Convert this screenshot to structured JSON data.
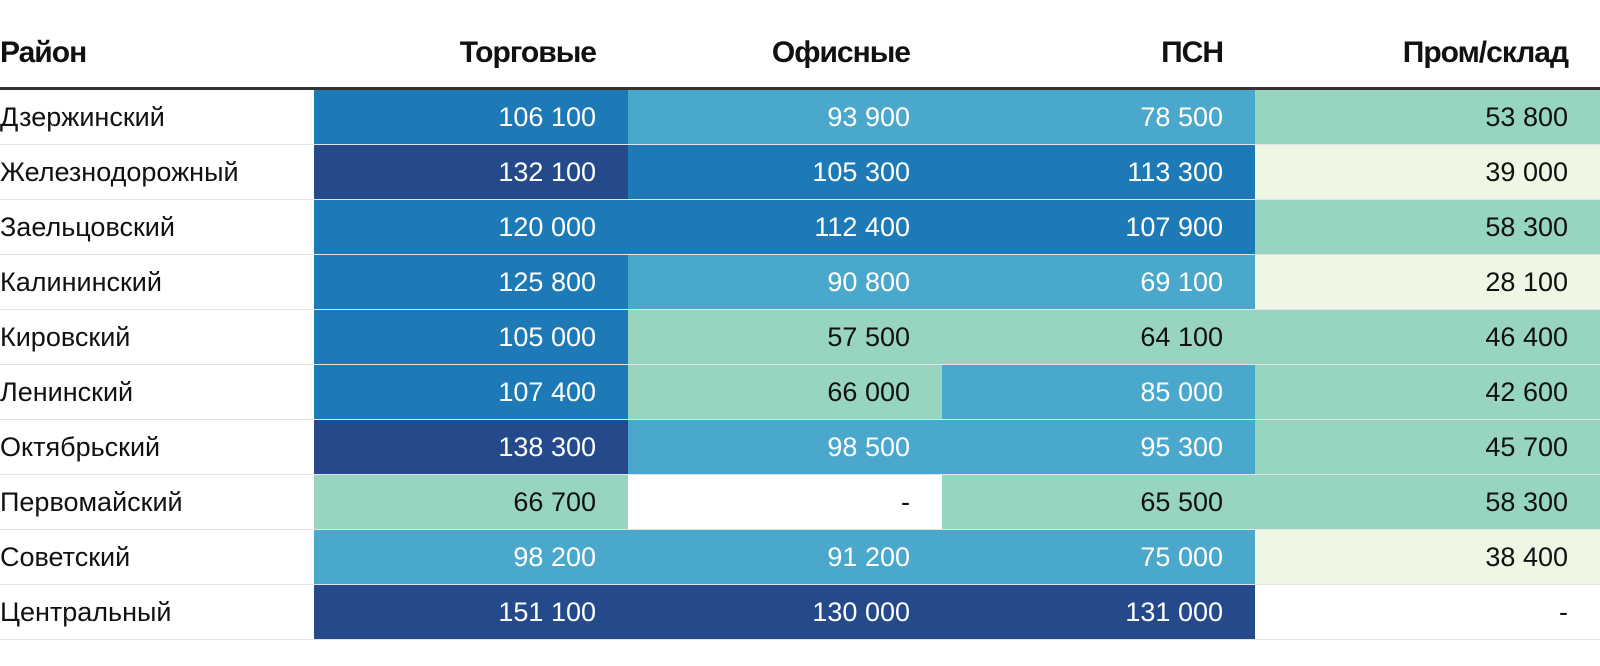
{
  "chart_data": {
    "type": "table",
    "columns": [
      "Район",
      "Торговые",
      "Офисные",
      "ПСН",
      "Пром/склад"
    ],
    "rows": [
      [
        "Дзержинский",
        "106 100",
        "93 900",
        "78 500",
        "53 800"
      ],
      [
        "Железнодорожный",
        "132 100",
        "105 300",
        "113 300",
        "39 000"
      ],
      [
        "Заельцовский",
        "120 000",
        "112 400",
        "107 900",
        "58 300"
      ],
      [
        "Калининский",
        "125 800",
        "90 800",
        "69 100",
        "28 100"
      ],
      [
        "Кировский",
        "105 000",
        "57 500",
        "64 100",
        "46 400"
      ],
      [
        "Ленинский",
        "107 400",
        "66 000",
        "85 000",
        "42 600"
      ],
      [
        "Октябрьский",
        "138 300",
        "98 500",
        "95 300",
        "45 700"
      ],
      [
        "Первомайский",
        "66 700",
        "-",
        "65 500",
        "58 300"
      ],
      [
        "Советский",
        "98 200",
        "91 200",
        "75 000",
        "38 400"
      ],
      [
        "Центральный",
        "151 100",
        "130 000",
        "131 000",
        "-"
      ]
    ],
    "color_scale": [
      {
        "max": 39000,
        "bg": "#eef7e4",
        "fg": "#111111"
      },
      {
        "max": 69000,
        "bg": "#97d5c0",
        "fg": "#111111"
      },
      {
        "max": 99000,
        "bg": "#4aa8cc",
        "fg": "#ffffff"
      },
      {
        "max": 129000,
        "bg": "#1d7ab6",
        "fg": "#ffffff"
      },
      {
        "max": 999999,
        "bg": "#244a8c",
        "fg": "#ffffff"
      }
    ],
    "empty_color": "#ffffff"
  }
}
